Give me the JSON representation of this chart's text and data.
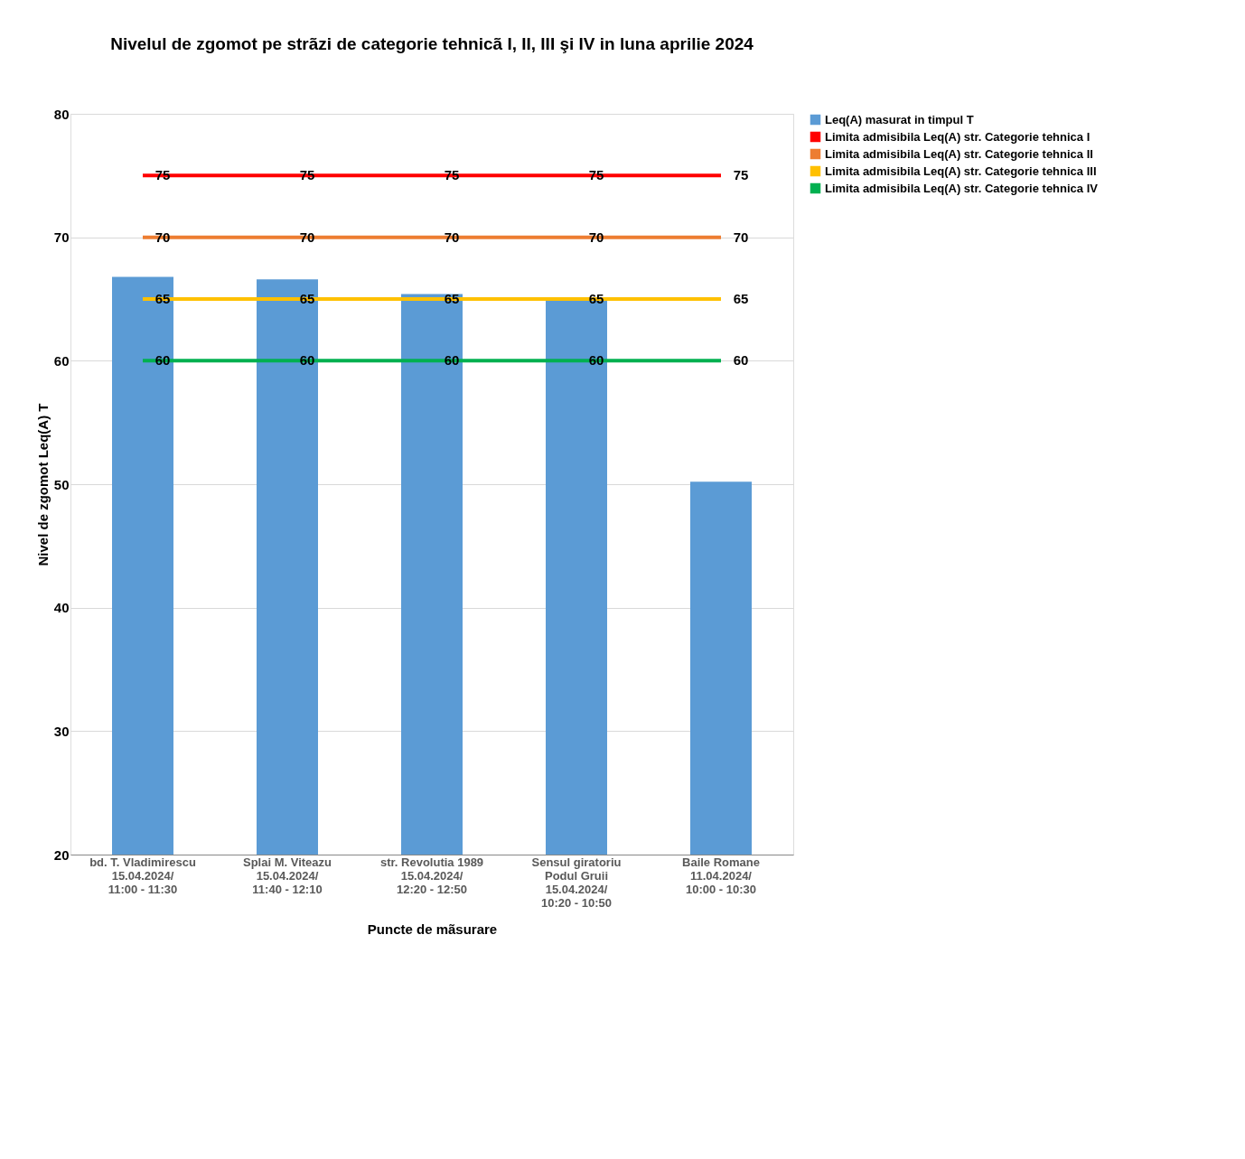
{
  "chart_data": {
    "type": "bar",
    "title": "Nivelul de zgomot pe strãzi de categorie tehnicã I, II, III şi IV in luna aprilie 2024",
    "xlabel": "Puncte de mãsurare",
    "ylabel": "Nivel de zgomot Leq(A) T",
    "categories": [
      "bd. T. Vladimirescu\n15.04.2024/\n11:00 - 11:30",
      "Splai M. Viteazu\n15.04.2024/\n11:40 - 12:10",
      "str. Revolutia 1989\n15.04.2024/\n12:20 - 12:50",
      "Sensul giratoriu\nPodul Gruii\n15.04.2024/\n10:20 - 10:50",
      "Baile Romane\n11.04.2024/\n10:00 - 10:30"
    ],
    "series": [
      {
        "name": "Leq(A) masurat in timpul T",
        "color": "#5b9bd5",
        "values": [
          66.8,
          66.6,
          65.4,
          64.9,
          50.2
        ]
      },
      {
        "name": "Limita admisibila Leq(A) str. Categorie tehnica I",
        "type": "line",
        "color": "#ff0000",
        "values": [
          75,
          75,
          75,
          75,
          75
        ],
        "data_labels": true
      },
      {
        "name": "Limita admisibila Leq(A) str. Categorie tehnica II",
        "type": "line",
        "color": "#ed7d31",
        "values": [
          70,
          70,
          70,
          70,
          70
        ],
        "data_labels": true
      },
      {
        "name": "Limita admisibila Leq(A) str. Categorie tehnica III",
        "type": "line",
        "color": "#ffc000",
        "values": [
          65,
          65,
          65,
          65,
          65
        ],
        "data_labels": true
      },
      {
        "name": "Limita admisibila Leq(A) str. Categorie tehnica IV",
        "type": "line",
        "color": "#00b050",
        "values": [
          60,
          60,
          60,
          60,
          60
        ],
        "data_labels": true
      }
    ],
    "ylim": [
      20,
      80
    ],
    "yticks": [
      20,
      30,
      40,
      50,
      60,
      70,
      80
    ],
    "grid": "y",
    "legend": "right",
    "marker": "none"
  }
}
